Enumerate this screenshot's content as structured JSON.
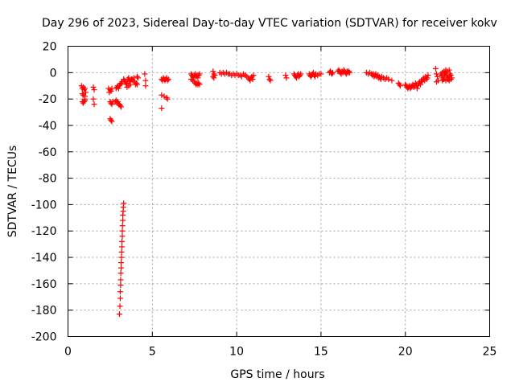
{
  "chart_data": {
    "type": "scatter",
    "title": "Day 296 of 2023, Sidereal Day-to-day VTEC variation (SDTVAR) for receiver kokv",
    "xlabel": "GPS time / hours",
    "ylabel": "SDTVAR / TECUs",
    "xlim": [
      0,
      25
    ],
    "ylim": [
      -200,
      20
    ],
    "grid": true,
    "marker": "+",
    "color": "#ff0000",
    "x_ticks": [
      "0",
      "5",
      "10",
      "15",
      "20",
      "25"
    ],
    "y_ticks": [
      "20",
      "0",
      "-20",
      "-40",
      "-60",
      "-80",
      "-100",
      "-120",
      "-140",
      "-160",
      "-180",
      "-200"
    ],
    "series": [
      {
        "name": "SDTVAR",
        "points": [
          [
            0.8,
            -10
          ],
          [
            0.85,
            -12
          ],
          [
            0.9,
            -11
          ],
          [
            0.95,
            -13
          ],
          [
            1.0,
            -12
          ],
          [
            1.05,
            -15
          ],
          [
            0.85,
            -16
          ],
          [
            0.9,
            -17
          ],
          [
            1.0,
            -18
          ],
          [
            1.0,
            -20
          ],
          [
            0.85,
            -22
          ],
          [
            0.9,
            -23
          ],
          [
            0.95,
            -22
          ],
          [
            1.0,
            -21
          ],
          [
            1.5,
            -11
          ],
          [
            1.55,
            -13
          ],
          [
            1.5,
            -20
          ],
          [
            1.55,
            -24
          ],
          [
            2.4,
            -12
          ],
          [
            2.5,
            -13
          ],
          [
            2.55,
            -14
          ],
          [
            2.6,
            -12
          ],
          [
            2.45,
            -15
          ],
          [
            2.5,
            -22
          ],
          [
            2.55,
            -23
          ],
          [
            2.6,
            -24
          ],
          [
            2.65,
            -22
          ],
          [
            2.5,
            -35
          ],
          [
            2.55,
            -36
          ],
          [
            2.6,
            -37
          ],
          [
            2.8,
            -22
          ],
          [
            2.85,
            -21
          ],
          [
            2.9,
            -23
          ],
          [
            2.95,
            -22
          ],
          [
            3.0,
            -24
          ],
          [
            3.05,
            -24
          ],
          [
            3.1,
            -25
          ],
          [
            3.15,
            -26
          ],
          [
            2.85,
            -12
          ],
          [
            2.9,
            -11
          ],
          [
            2.95,
            -10
          ],
          [
            3.0,
            -12
          ],
          [
            3.05,
            -10
          ],
          [
            3.1,
            -9
          ],
          [
            3.15,
            -8
          ],
          [
            3.2,
            -7
          ],
          [
            3.05,
            -183
          ],
          [
            3.08,
            -177
          ],
          [
            3.1,
            -171
          ],
          [
            3.1,
            -166
          ],
          [
            3.12,
            -161
          ],
          [
            3.12,
            -157
          ],
          [
            3.13,
            -152
          ],
          [
            3.15,
            -148
          ],
          [
            3.15,
            -144
          ],
          [
            3.17,
            -140
          ],
          [
            3.18,
            -136
          ],
          [
            3.2,
            -132
          ],
          [
            3.2,
            -128
          ],
          [
            3.22,
            -124
          ],
          [
            3.22,
            -120
          ],
          [
            3.23,
            -116
          ],
          [
            3.25,
            -112
          ],
          [
            3.25,
            -108
          ],
          [
            3.27,
            -105
          ],
          [
            3.28,
            -102
          ],
          [
            3.3,
            -99
          ],
          [
            3.3,
            -5
          ],
          [
            3.35,
            -6
          ],
          [
            3.4,
            -7
          ],
          [
            3.45,
            -9
          ],
          [
            3.5,
            -8
          ],
          [
            3.55,
            -5
          ],
          [
            3.6,
            -4
          ],
          [
            3.65,
            -6
          ],
          [
            3.7,
            -7
          ],
          [
            3.75,
            -5
          ],
          [
            3.5,
            -11
          ],
          [
            3.6,
            -10
          ],
          [
            3.7,
            -9
          ],
          [
            3.8,
            -5
          ],
          [
            3.85,
            -6
          ],
          [
            3.9,
            -4
          ],
          [
            3.95,
            -7
          ],
          [
            4.0,
            -9
          ],
          [
            4.05,
            -8
          ],
          [
            4.1,
            -3
          ],
          [
            4.15,
            -4
          ],
          [
            4.1,
            -9
          ],
          [
            4.55,
            -1
          ],
          [
            4.6,
            -6
          ],
          [
            4.6,
            -10
          ],
          [
            5.55,
            -5
          ],
          [
            5.6,
            -6
          ],
          [
            5.65,
            -4
          ],
          [
            5.7,
            -5
          ],
          [
            5.75,
            -6
          ],
          [
            5.8,
            -5
          ],
          [
            5.85,
            -4
          ],
          [
            5.9,
            -6
          ],
          [
            5.95,
            -5
          ],
          [
            5.55,
            -17
          ],
          [
            5.7,
            -18
          ],
          [
            5.85,
            -19
          ],
          [
            5.9,
            -20
          ],
          [
            5.55,
            -27
          ],
          [
            7.3,
            -1
          ],
          [
            7.35,
            -2
          ],
          [
            7.4,
            -3
          ],
          [
            7.45,
            -4
          ],
          [
            7.5,
            -2
          ],
          [
            7.55,
            -1
          ],
          [
            7.6,
            -3
          ],
          [
            7.65,
            -2
          ],
          [
            7.7,
            -4
          ],
          [
            7.75,
            -2
          ],
          [
            7.8,
            -1
          ],
          [
            7.3,
            -5
          ],
          [
            7.4,
            -6
          ],
          [
            7.5,
            -7
          ],
          [
            7.55,
            -8
          ],
          [
            7.6,
            -9
          ],
          [
            7.65,
            -8
          ],
          [
            7.7,
            -9
          ],
          [
            7.75,
            -8
          ],
          [
            7.8,
            -9
          ],
          [
            8.6,
            1
          ],
          [
            8.65,
            -1
          ],
          [
            8.7,
            -2
          ],
          [
            8.6,
            -3
          ],
          [
            8.65,
            -4
          ],
          [
            9.0,
            0
          ],
          [
            9.1,
            -1
          ],
          [
            9.2,
            0
          ],
          [
            9.3,
            -1
          ],
          [
            9.4,
            0
          ],
          [
            9.5,
            -1
          ],
          [
            9.6,
            -1
          ],
          [
            9.7,
            -2
          ],
          [
            9.8,
            -1
          ],
          [
            9.9,
            -2
          ],
          [
            10.0,
            -1
          ],
          [
            10.1,
            -2
          ],
          [
            10.2,
            -2
          ],
          [
            10.3,
            -3
          ],
          [
            10.4,
            -1
          ],
          [
            10.5,
            -2
          ],
          [
            10.6,
            -3
          ],
          [
            10.7,
            -4
          ],
          [
            10.75,
            -5
          ],
          [
            10.8,
            -6
          ],
          [
            10.85,
            -4
          ],
          [
            10.9,
            -3
          ],
          [
            10.95,
            -5
          ],
          [
            11.0,
            -2
          ],
          [
            11.9,
            -3
          ],
          [
            11.95,
            -5
          ],
          [
            12.0,
            -6
          ],
          [
            12.9,
            -2
          ],
          [
            12.95,
            -4
          ],
          [
            13.4,
            -1
          ],
          [
            13.45,
            -2
          ],
          [
            13.5,
            -3
          ],
          [
            13.55,
            -4
          ],
          [
            13.6,
            -2
          ],
          [
            13.65,
            -1
          ],
          [
            13.7,
            -3
          ],
          [
            13.75,
            -2
          ],
          [
            13.8,
            -1
          ],
          [
            14.3,
            -1
          ],
          [
            14.35,
            -2
          ],
          [
            14.4,
            -3
          ],
          [
            14.45,
            -2
          ],
          [
            14.5,
            -1
          ],
          [
            14.55,
            0
          ],
          [
            14.6,
            -2
          ],
          [
            14.65,
            -3
          ],
          [
            14.7,
            -1
          ],
          [
            14.8,
            -2
          ],
          [
            14.9,
            -1
          ],
          [
            15.0,
            -1
          ],
          [
            15.5,
            0
          ],
          [
            15.55,
            1
          ],
          [
            15.6,
            0
          ],
          [
            15.65,
            -1
          ],
          [
            15.7,
            0
          ],
          [
            16.0,
            1
          ],
          [
            16.05,
            2
          ],
          [
            16.1,
            1
          ],
          [
            16.15,
            0
          ],
          [
            16.2,
            -1
          ],
          [
            16.25,
            1
          ],
          [
            16.3,
            0
          ],
          [
            16.35,
            2
          ],
          [
            16.4,
            1
          ],
          [
            16.45,
            0
          ],
          [
            16.5,
            -1
          ],
          [
            16.55,
            1
          ],
          [
            16.6,
            0
          ],
          [
            16.65,
            1
          ],
          [
            16.7,
            0
          ],
          [
            17.7,
            0
          ],
          [
            17.8,
            -1
          ],
          [
            17.9,
            0
          ],
          [
            18.0,
            -1
          ],
          [
            18.05,
            -2
          ],
          [
            18.1,
            -1
          ],
          [
            18.15,
            -3
          ],
          [
            18.2,
            -2
          ],
          [
            18.25,
            -1
          ],
          [
            18.3,
            -3
          ],
          [
            18.35,
            -2
          ],
          [
            18.4,
            -4
          ],
          [
            18.45,
            -3
          ],
          [
            18.5,
            -4
          ],
          [
            18.55,
            -5
          ],
          [
            18.6,
            -3
          ],
          [
            18.7,
            -4
          ],
          [
            18.8,
            -5
          ],
          [
            18.9,
            -4
          ],
          [
            19.0,
            -5
          ],
          [
            19.2,
            -6
          ],
          [
            19.6,
            -8
          ],
          [
            19.65,
            -9
          ],
          [
            19.7,
            -10
          ],
          [
            20.0,
            -9
          ],
          [
            20.05,
            -10
          ],
          [
            20.1,
            -11
          ],
          [
            20.15,
            -12
          ],
          [
            20.2,
            -11
          ],
          [
            20.25,
            -10
          ],
          [
            20.3,
            -12
          ],
          [
            20.35,
            -11
          ],
          [
            20.4,
            -10
          ],
          [
            20.45,
            -9
          ],
          [
            20.5,
            -11
          ],
          [
            20.55,
            -10
          ],
          [
            20.6,
            -8
          ],
          [
            20.65,
            -9
          ],
          [
            20.7,
            -12
          ],
          [
            20.75,
            -10
          ],
          [
            20.8,
            -8
          ],
          [
            20.85,
            -7
          ],
          [
            20.9,
            -9
          ],
          [
            20.95,
            -6
          ],
          [
            21.0,
            -7
          ],
          [
            21.05,
            -5
          ],
          [
            21.1,
            -4
          ],
          [
            21.15,
            -6
          ],
          [
            21.2,
            -3
          ],
          [
            21.25,
            -5
          ],
          [
            21.3,
            -4
          ],
          [
            21.35,
            -2
          ],
          [
            21.8,
            3
          ],
          [
            21.85,
            -1
          ],
          [
            21.9,
            -3
          ],
          [
            21.95,
            -6
          ],
          [
            21.85,
            -7
          ],
          [
            22.1,
            -1
          ],
          [
            22.15,
            -2
          ],
          [
            22.2,
            -4
          ],
          [
            22.25,
            -5
          ],
          [
            22.3,
            -3
          ],
          [
            22.35,
            -1
          ],
          [
            22.4,
            0
          ],
          [
            22.45,
            -2
          ],
          [
            22.5,
            -4
          ],
          [
            22.55,
            -5
          ],
          [
            22.6,
            -3
          ],
          [
            22.65,
            -1
          ],
          [
            22.2,
            0
          ],
          [
            22.3,
            1
          ],
          [
            22.4,
            2
          ],
          [
            22.5,
            1
          ],
          [
            22.6,
            2
          ],
          [
            22.7,
            -2
          ],
          [
            22.75,
            -4
          ],
          [
            22.2,
            -6
          ],
          [
            22.3,
            -5
          ],
          [
            22.4,
            -6
          ],
          [
            22.5,
            -5
          ],
          [
            22.6,
            -6
          ],
          [
            22.7,
            -5
          ]
        ]
      }
    ]
  }
}
